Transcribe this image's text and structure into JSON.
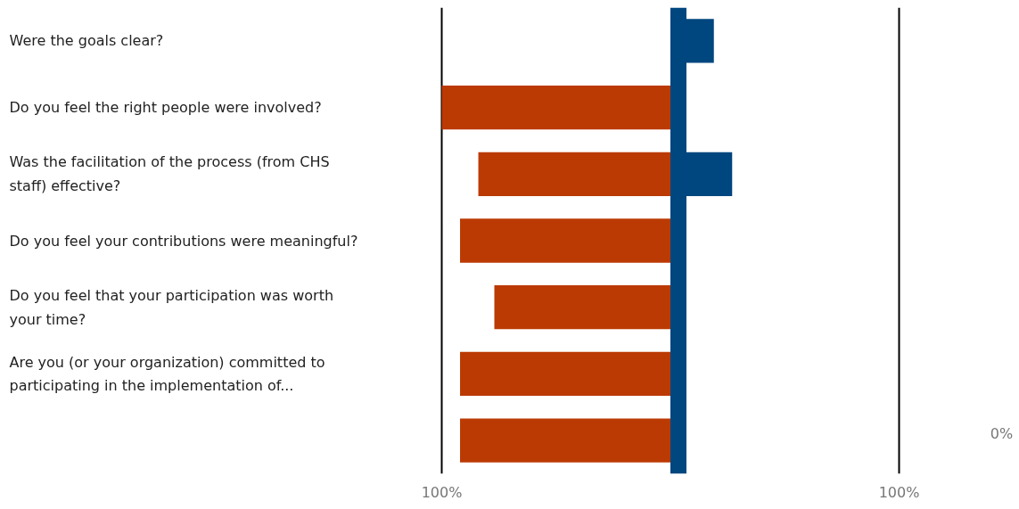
{
  "chart_data": {
    "type": "bar",
    "orientation": "horizontal",
    "categories": [
      "Were the goals clear?",
      "Do you feel the right people were involved?",
      "Was the facilitation of the process (from CHS staff) effective?",
      "Do you feel your contributions were meaningful?",
      "Do you feel that your participation was worth your time?",
      "Are you (or your organization) committed to participating in the implementation of...",
      null
    ],
    "series": [
      {
        "color": "#bb3a03",
        "values": [
          null,
          -100,
          -84,
          -92,
          -77,
          -92,
          -92
        ]
      },
      {
        "color": "#00467f",
        "values": [
          19,
          null,
          27,
          null,
          null,
          null,
          null
        ]
      }
    ],
    "xlim": [
      -100,
      100
    ],
    "xticks": [
      {
        "value": -100,
        "label": "100%"
      },
      {
        "value": 100,
        "label": "100%"
      }
    ],
    "ref_lines": [
      {
        "axis": "x",
        "value": 3.5,
        "color": "#00467f"
      }
    ],
    "annotations": [
      "0%"
    ],
    "grid": "x"
  }
}
